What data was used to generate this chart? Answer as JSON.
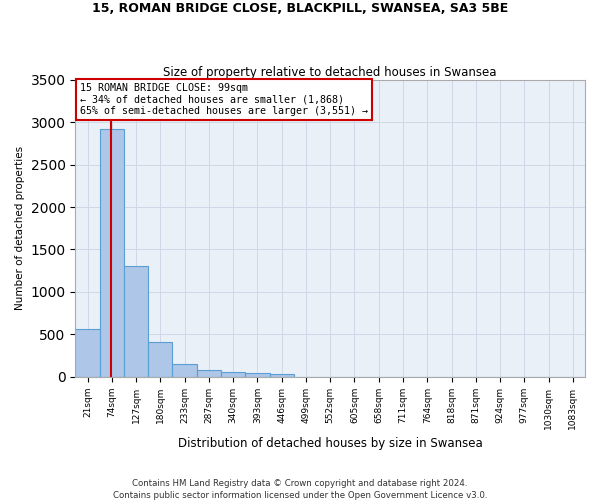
{
  "title": "15, ROMAN BRIDGE CLOSE, BLACKPILL, SWANSEA, SA3 5BE",
  "subtitle": "Size of property relative to detached houses in Swansea",
  "xlabel": "Distribution of detached houses by size in Swansea",
  "ylabel": "Number of detached properties",
  "bin_labels": [
    "21sqm",
    "74sqm",
    "127sqm",
    "180sqm",
    "233sqm",
    "287sqm",
    "340sqm",
    "393sqm",
    "446sqm",
    "499sqm",
    "552sqm",
    "605sqm",
    "658sqm",
    "711sqm",
    "764sqm",
    "818sqm",
    "871sqm",
    "924sqm",
    "977sqm",
    "1030sqm",
    "1083sqm"
  ],
  "bar_values": [
    560,
    2920,
    1310,
    410,
    155,
    75,
    55,
    40,
    35,
    0,
    0,
    0,
    0,
    0,
    0,
    0,
    0,
    0,
    0,
    0,
    0
  ],
  "bar_color": "#aec6e8",
  "bar_edge_color": "#5a9fd4",
  "property_bin_index": 1,
  "property_line_label": "15 ROMAN BRIDGE CLOSE: 99sqm",
  "annotation_line1": "← 34% of detached houses are smaller (1,868)",
  "annotation_line2": "65% of semi-detached houses are larger (3,551) →",
  "annotation_box_color": "#ffffff",
  "annotation_box_edge": "#cc0000",
  "red_line_color": "#cc0000",
  "grid_color": "#d0d8e8",
  "background_color": "#eaf0f8",
  "ylim": [
    0,
    3500
  ],
  "footnote1": "Contains HM Land Registry data © Crown copyright and database right 2024.",
  "footnote2": "Contains public sector information licensed under the Open Government Licence v3.0."
}
